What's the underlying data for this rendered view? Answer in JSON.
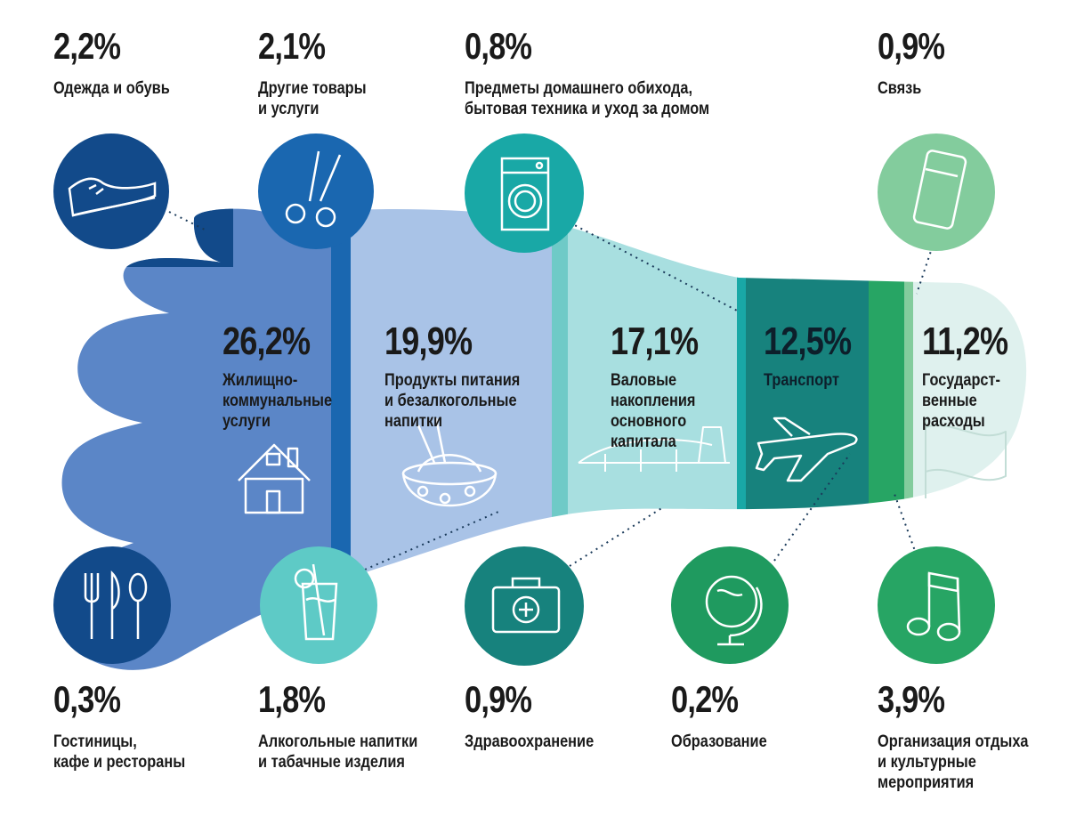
{
  "colors": {
    "navy": "#124a8a",
    "blue": "#1a67b0",
    "periwinkle": "#5b86c7",
    "light_blue": "#a9c3e7",
    "light_teal": "#a8dfe0",
    "teal": "#19a8a6",
    "dark_teal": "#17827d",
    "green": "#27a564",
    "mint": "#83cc9d",
    "pale_mint": "#dff1ee"
  },
  "chart_data": {
    "type": "infographic",
    "unit": "%",
    "main_segments": [
      {
        "label": "Жилищно-\nкоммунальные\nуслуги",
        "value": "26,2%",
        "icon": "house-icon"
      },
      {
        "label": "Продукты питания\nи безалкогольные\nнапитки",
        "value": "19,9%",
        "icon": "food-bowl-icon"
      },
      {
        "label": "Валовые\nнакопления\nосновного\nкапитала",
        "value": "17,1%",
        "icon": "bridge-icon"
      },
      {
        "label": "Транспорт",
        "value": "12,5%",
        "icon": "airplane-icon"
      },
      {
        "label": "Государст-\nвенные\nрасходы",
        "value": "11,2%",
        "icon": "flag-icon"
      }
    ],
    "small_top": [
      {
        "label": "Одежда и обувь",
        "value": "2,2%",
        "icon": "sneaker-icon"
      },
      {
        "label": "Другие товары\nи услуги",
        "value": "2,1%",
        "icon": "scissors-icon"
      },
      {
        "label": "Предметы домашнего обихода,\nбытовая техника и уход за домом",
        "value": "0,8%",
        "icon": "washing-machine-icon"
      },
      {
        "label": "Связь",
        "value": "0,9%",
        "icon": "phone-icon"
      }
    ],
    "small_bottom": [
      {
        "label": "Гостиницы,\nкафе и рестораны",
        "value": "0,3%",
        "icon": "cutlery-icon"
      },
      {
        "label": "Алкогольные напитки\nи табачные изделия",
        "value": "1,8%",
        "icon": "drink-glass-icon"
      },
      {
        "label": "Здравоохранение",
        "value": "0,9%",
        "icon": "first-aid-kit-icon"
      },
      {
        "label": "Образование",
        "value": "0,2%",
        "icon": "globe-icon"
      },
      {
        "label": "Организация отдыха\nи культурные\nмероприятия",
        "value": "3,9%",
        "icon": "music-note-icon"
      }
    ]
  }
}
